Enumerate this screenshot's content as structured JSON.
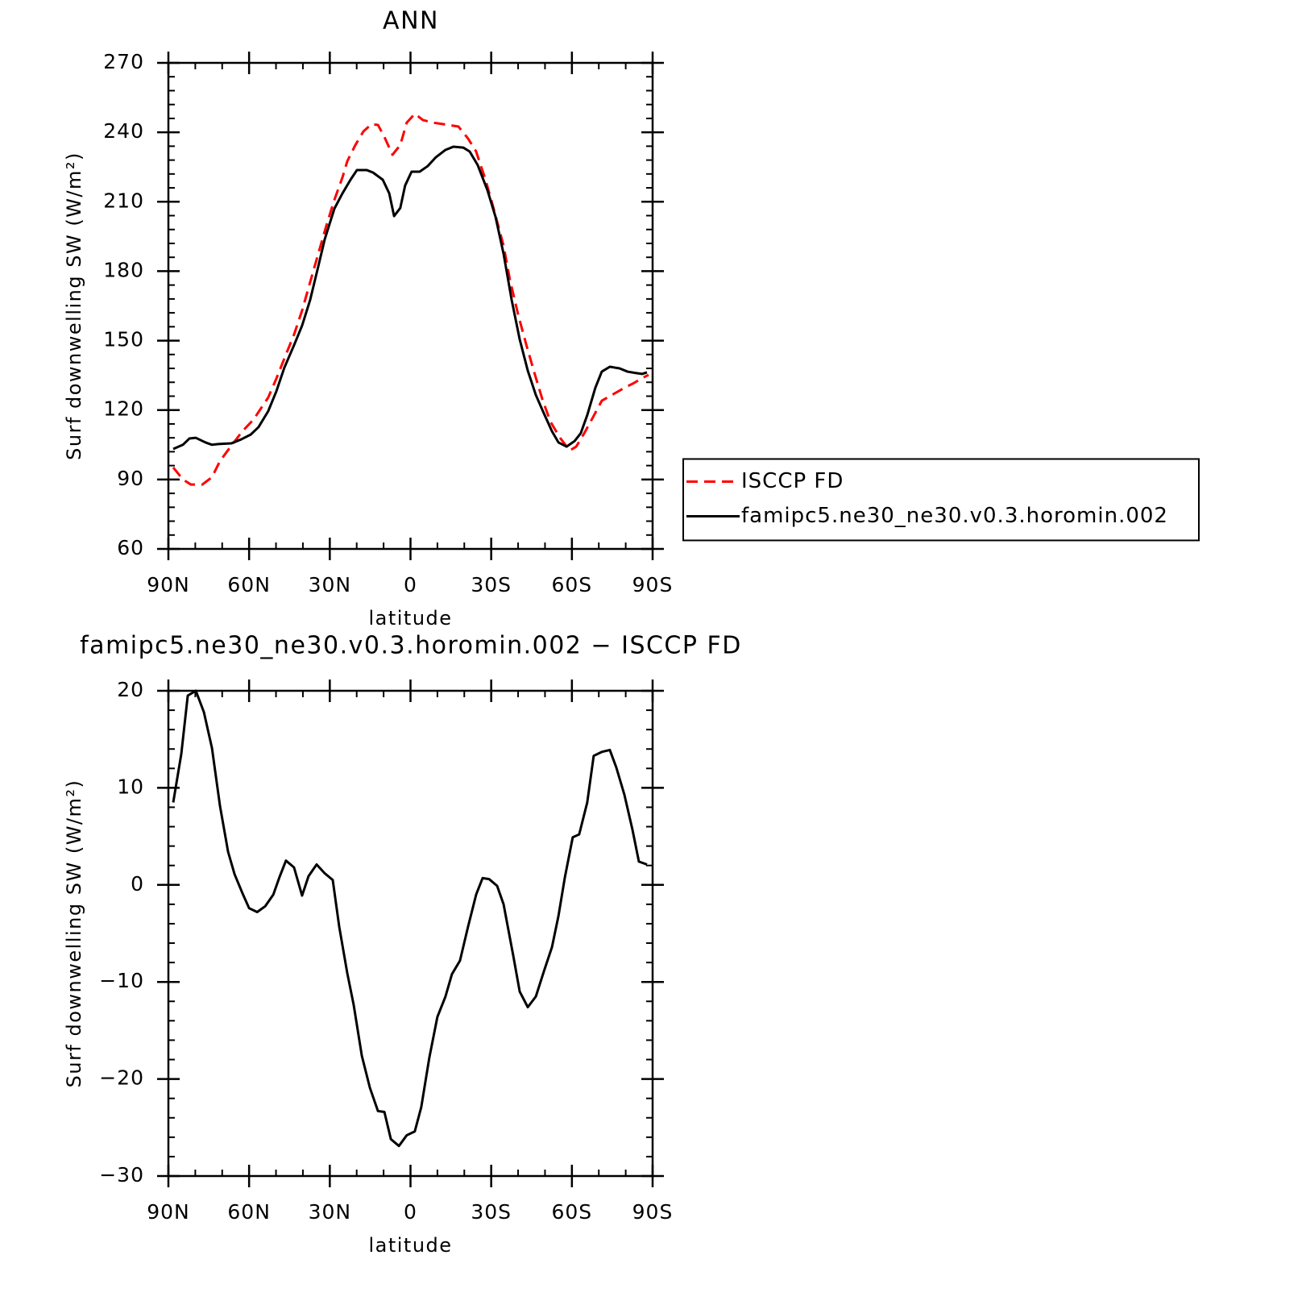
{
  "chart_data": [
    {
      "type": "line",
      "title": "ANN",
      "xlabel": "latitude",
      "ylabel": "Surf downwelling SW (W/m²)",
      "xlim": [
        90,
        -90
      ],
      "xticks": [
        {
          "value": 90,
          "label": "90N"
        },
        {
          "value": 60,
          "label": "60N"
        },
        {
          "value": 30,
          "label": "30N"
        },
        0,
        {
          "value": -30,
          "label": "30S"
        },
        {
          "value": -60,
          "label": "60S"
        },
        {
          "value": -90,
          "label": "90S"
        }
      ],
      "ylim": [
        60,
        270
      ],
      "yticks": [
        60,
        90,
        120,
        150,
        180,
        210,
        240,
        270
      ],
      "legend": "right",
      "series": [
        {
          "name": "ISCCP FD",
          "color": "#ff0000",
          "style": "dashed",
          "x": [
            88.2,
            84.6,
            81.6,
            77.4,
            73.8,
            70.8,
            66.6,
            62.5,
            58.3,
            52.9,
            49.9,
            46.3,
            43.3,
            40.3,
            37.3,
            34.3,
            31.3,
            28.3,
            25.3,
            23.5,
            20.5,
            17.5,
            14.5,
            12.1,
            9.7,
            6.7,
            3.8,
            1.4,
            -1.6,
            -4.6,
            -8.2,
            -12.4,
            -17.8,
            -21.4,
            -24.4,
            -28,
            -31,
            -34.6,
            -37,
            -40,
            -43,
            -46,
            -49,
            -52,
            -55.6,
            -59.2,
            -61.6,
            -64.6,
            -67.6,
            -71.1,
            -75.3,
            -79.5,
            -83.1,
            -86.1,
            -88.5
          ],
          "values": [
            95.2,
            90,
            87.8,
            87.8,
            91,
            98,
            104.6,
            110.8,
            116,
            125.4,
            133.5,
            144,
            152.6,
            163,
            175.3,
            187.5,
            199.6,
            210.8,
            220.5,
            227.5,
            234.5,
            240.4,
            243.5,
            243.2,
            238,
            230.3,
            234.5,
            244.2,
            248,
            245.3,
            244.2,
            243.5,
            242.5,
            237.3,
            231.7,
            219.1,
            206.6,
            191,
            176,
            161.3,
            148.4,
            136.3,
            124.7,
            115,
            108,
            102.5,
            104.2,
            110,
            116.4,
            124,
            126.8,
            129.6,
            131.7,
            133.8,
            135.2
          ]
        },
        {
          "name": "famipc5.ne30_ne30.v0.3.horomin.002",
          "color": "#000000",
          "style": "solid",
          "x": [
            88.2,
            84.6,
            82.2,
            79.8,
            76.2,
            73.8,
            71.4,
            66.6,
            63,
            59.4,
            56.5,
            52.9,
            49.9,
            46.9,
            43.3,
            40.3,
            37.3,
            34.3,
            31.9,
            28.3,
            25.3,
            22.3,
            19.9,
            16.3,
            13.9,
            10.3,
            7.9,
            6.1,
            3.8,
            2,
            -0.4,
            -3.4,
            -6.4,
            -9.4,
            -13,
            -16,
            -19.6,
            -22,
            -25,
            -28.6,
            -31.6,
            -34.6,
            -37.6,
            -40.6,
            -43.6,
            -46.6,
            -49.6,
            -52.6,
            -55,
            -58,
            -61,
            -63.3,
            -65.7,
            -68.7,
            -71.1,
            -74.1,
            -77.7,
            -80.7,
            -83.7,
            -86.1,
            -87.9
          ],
          "values": [
            103.2,
            105,
            107.7,
            108,
            106,
            105,
            105.3,
            105.6,
            107.3,
            109.4,
            112.6,
            119.5,
            128,
            138.3,
            148,
            156.5,
            167.6,
            182,
            193.7,
            207,
            213.6,
            219.5,
            223.7,
            223.7,
            222.6,
            219.5,
            213.6,
            203.8,
            207.3,
            217,
            223,
            223,
            225.4,
            229.2,
            232.4,
            233.8,
            233.4,
            231.7,
            225.8,
            215,
            203.5,
            187.5,
            167.6,
            150.5,
            137,
            126.5,
            118.5,
            110.8,
            106,
            104.2,
            106.6,
            110,
            117.8,
            129.6,
            136.6,
            138.7,
            138,
            136.6,
            136,
            135.6,
            136.3
          ]
        }
      ]
    },
    {
      "type": "line",
      "title": "famipc5.ne30_ne30.v0.3.horomin.002 − ISCCP FD",
      "xlabel": "latitude",
      "ylabel": "Surf downwelling SW (W/m²)",
      "xlim": [
        90,
        -90
      ],
      "xticks": [
        {
          "value": 90,
          "label": "90N"
        },
        {
          "value": 60,
          "label": "60N"
        },
        {
          "value": 30,
          "label": "30N"
        },
        0,
        {
          "value": -30,
          "label": "30S"
        },
        {
          "value": -60,
          "label": "60S"
        },
        {
          "value": -90,
          "label": "90S"
        }
      ],
      "ylim": [
        -30,
        20
      ],
      "yticks": [
        {
          "value": -30,
          "label": "−30"
        },
        {
          "value": -20,
          "label": "−20"
        },
        {
          "value": -10,
          "label": "−10"
        },
        0,
        10,
        20
      ],
      "series": [
        {
          "color": "#000000",
          "style": "solid",
          "x": [
            88.2,
            85.2,
            82.8,
            79.8,
            76.8,
            73.8,
            70.8,
            67.8,
            65.4,
            62.4,
            60,
            57,
            54,
            51,
            48.7,
            46.3,
            43.3,
            40.3,
            37.9,
            34.9,
            31.9,
            28.9,
            26.5,
            23.5,
            21.1,
            18.1,
            15.1,
            12.1,
            9.7,
            7.3,
            4.3,
            1.4,
            -1.6,
            -4,
            -7,
            -10,
            -13,
            -15.4,
            -18.4,
            -21.4,
            -24.4,
            -26.8,
            -29.2,
            -32.2,
            -34.6,
            -38.2,
            -40.6,
            -43.6,
            -46.6,
            -49.6,
            -52.6,
            -55,
            -57.4,
            -60.3,
            -62.7,
            -65.7,
            -68.1,
            -71.1,
            -74.1,
            -76.5,
            -79.5,
            -82.5,
            -84.9,
            -87.9
          ],
          "values": [
            8.5,
            13.5,
            19.5,
            20,
            17.8,
            14.1,
            8.1,
            3.4,
            1.1,
            -0.9,
            -2.4,
            -2.8,
            -2.2,
            -1,
            0.8,
            2.5,
            1.8,
            -1.1,
            0.9,
            2.1,
            1.2,
            0.5,
            -4.3,
            -9.1,
            -12.4,
            -17.6,
            -20.9,
            -23.3,
            -23.4,
            -26.2,
            -26.9,
            -25.8,
            -25.4,
            -22.9,
            -17.8,
            -13.6,
            -11.5,
            -9.2,
            -7.8,
            -4.3,
            -1,
            0.7,
            0.6,
            -0.1,
            -2,
            -7.3,
            -11,
            -12.6,
            -11.5,
            -8.9,
            -6.4,
            -3.2,
            0.8,
            4.9,
            5.2,
            8.5,
            13.3,
            13.7,
            13.9,
            12.1,
            9.3,
            5.7,
            2.4,
            2.1
          ]
        }
      ]
    }
  ]
}
